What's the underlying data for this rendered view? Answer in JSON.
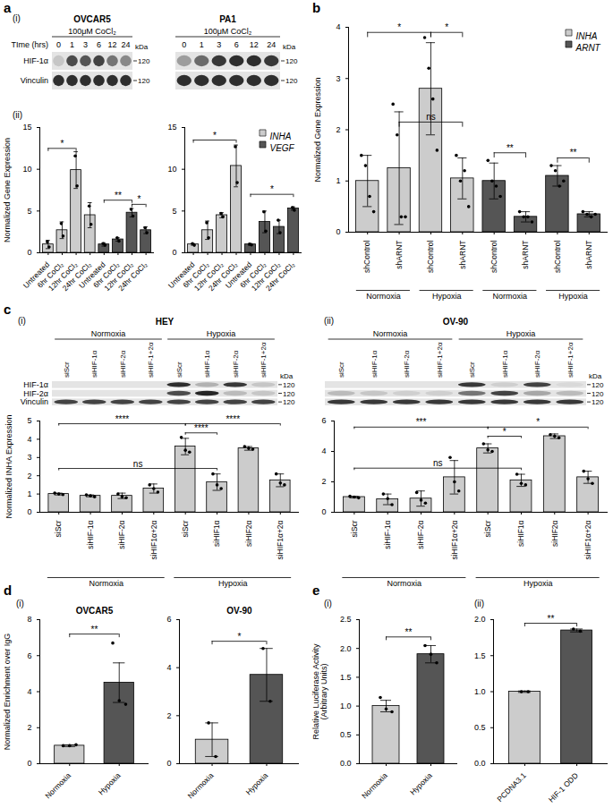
{
  "panel_labels": [
    "a",
    "(i)",
    "(ii)",
    "b",
    "c",
    "(i)",
    "(ii)",
    "d",
    "(i)",
    "e",
    "(i)",
    "(ii)"
  ],
  "blots": [
    {
      "title": "OVCAR5",
      "treatment": "100μM CoCl₂",
      "lane_header": "TIme (hrs)",
      "lanes": [
        "0",
        "1",
        "3",
        "6",
        "12",
        "24"
      ],
      "unit": "kDa",
      "rows": [
        {
          "name": "HIF-1α",
          "marker": 120,
          "bands": [
            0.15,
            0.75,
            0.7,
            0.8,
            0.55,
            0.45
          ]
        },
        {
          "name": "Vinculin",
          "marker": 120,
          "bands": [
            0.9,
            0.9,
            0.9,
            0.9,
            0.9,
            0.9
          ]
        }
      ]
    },
    {
      "title": "PA1",
      "treatment": "100μM CoCl₂",
      "lanes": [
        "0",
        "1",
        "3",
        "6",
        "12",
        "24"
      ],
      "unit": "kDa",
      "rows": [
        {
          "marker": 120,
          "bands": [
            0.35,
            0.6,
            0.85,
            0.9,
            0.9,
            0.85
          ]
        },
        {
          "marker": 120,
          "bands": [
            0.9,
            0.9,
            0.9,
            0.9,
            0.9,
            0.9
          ]
        }
      ]
    },
    {
      "title": "HEY",
      "groups": [
        {
          "label": "Normoxia",
          "from": 0,
          "to": 3
        },
        {
          "label": "Hypoxia",
          "from": 4,
          "to": 7
        }
      ],
      "lanes": [
        "siScr",
        "siHIF-1α",
        "siHIF-2α",
        "siHIF-1+2α",
        "siScr",
        "siHIF-1α",
        "siHIF-2α",
        "siHIF-1+2α"
      ],
      "unit": "kDa",
      "rows": [
        {
          "name": "HIF-1α",
          "marker": 120,
          "bands": [
            0,
            0,
            0,
            0,
            0.9,
            0.25,
            0.85,
            0.15
          ]
        },
        {
          "name": "HIF-2α",
          "marker": 120,
          "bands": [
            0,
            0,
            0,
            0,
            0.75,
            0.95,
            0.2,
            0.15
          ]
        },
        {
          "name": "Vinculin",
          "marker": 120,
          "bands": [
            0.8,
            0.8,
            0.8,
            0.8,
            0.8,
            0.8,
            0.8,
            0.8
          ]
        }
      ]
    },
    {
      "title": "OV-90",
      "groups": [
        {
          "label": "Normoxia",
          "from": 0,
          "to": 3
        },
        {
          "label": "Hypoxia",
          "from": 4,
          "to": 7
        }
      ],
      "lanes": [
        "siScr",
        "siHIF-1α",
        "siHIF-2α",
        "siHIF-1+2α",
        "siScr",
        "siHIF-1α",
        "siHIF-2α",
        "siHIF-1+2α"
      ],
      "unit": "kDa",
      "rows": [
        {
          "marker": 120,
          "bands": [
            0,
            0,
            0,
            0,
            0.85,
            0.1,
            0.8,
            0.05
          ]
        },
        {
          "marker": 120,
          "bands": [
            0.2,
            0.15,
            0.1,
            0.1,
            0.55,
            0.8,
            0.3,
            0.2
          ]
        },
        {
          "marker": 120,
          "bands": [
            0.85,
            0.85,
            0.85,
            0.85,
            0.85,
            0.85,
            0.85,
            0.85
          ]
        }
      ]
    }
  ],
  "chart_data": [
    {
      "type": "bar",
      "ylabel": "Normalized Gene Expression",
      "categories": [
        "Untreated",
        "6hr CoCl₂",
        "12hr CoCl₂",
        "24hr CoCl₂",
        "Untreated",
        "6hr CoCl₂",
        "12hr CoCl₂",
        "24hr CoCl₂"
      ],
      "values": [
        1.0,
        2.7,
        9.9,
        4.5,
        1.0,
        1.6,
        4.8,
        2.7
      ],
      "errors": [
        0.5,
        1.0,
        2.2,
        1.5,
        0.2,
        0.2,
        0.5,
        0.4
      ],
      "points": [
        [
          1.3,
          0.7
        ],
        [
          3.5,
          2.0
        ],
        [
          11.6,
          8.0
        ],
        [
          5.6,
          3.4
        ],
        [
          1.1,
          0.9
        ],
        [
          1.8,
          1.4
        ],
        [
          5.2,
          4.4
        ],
        [
          3.0,
          2.4
        ]
      ],
      "colors": [
        "#cccccc",
        "#cccccc",
        "#cccccc",
        "#cccccc",
        "#555555",
        "#555555",
        "#555555",
        "#555555"
      ],
      "ylim": [
        0,
        15
      ],
      "yticks": [
        0,
        5,
        10,
        15
      ],
      "annotations": [
        {
          "text": "*",
          "from": 0,
          "to": 2,
          "y": 12.5
        },
        {
          "text": "**",
          "from": 4,
          "to": 6,
          "y": 6.3
        },
        {
          "text": "*",
          "from": 6,
          "to": 7,
          "y": 5.8
        }
      ]
    },
    {
      "type": "bar",
      "categories": [
        "Untreated",
        "6hr CoCl₂",
        "12hr CoCl₂",
        "24hr CoCl₂",
        "Untreated",
        "6hr CoCl₂",
        "12hr CoCl₂",
        "24hr CoCl₂"
      ],
      "series": [
        {
          "name": "INHA",
          "color": "#cccccc",
          "values": [
            1.0,
            2.7,
            4.5,
            10.4,
            null,
            null,
            null,
            null
          ],
          "errors": [
            0.1,
            1.1,
            0.3,
            2.5,
            null,
            null,
            null,
            null
          ],
          "points": [
            [
              1.1,
              0.9
            ],
            [
              3.6,
              1.8
            ],
            [
              4.7,
              4.3
            ],
            [
              12.7,
              8.4
            ],
            null,
            null,
            null,
            null
          ]
        },
        {
          "name": "VEGF",
          "color": "#555555",
          "values": [
            null,
            null,
            null,
            null,
            1.0,
            3.7,
            3.1,
            5.3
          ],
          "errors": [
            null,
            null,
            null,
            null,
            0.1,
            1.3,
            0.8,
            0.2
          ],
          "points": [
            null,
            null,
            null,
            null,
            [
              1.05,
              0.95
            ],
            [
              4.9,
              2.6
            ],
            [
              3.9,
              2.4
            ],
            [
              5.4,
              5.1
            ]
          ]
        }
      ],
      "legend": "top-right",
      "ylim": [
        0,
        15
      ],
      "yticks": [
        0,
        5,
        10,
        15
      ],
      "annotations": [
        {
          "text": "*",
          "from": 0,
          "to": 3,
          "y": 13.5
        },
        {
          "text": "*",
          "from": 4,
          "to": 7,
          "y": 7.0
        }
      ]
    },
    {
      "type": "bar",
      "ylabel": "Normalized Gene Expression",
      "categories": [
        "shControl",
        "shARNT",
        "shControl",
        "shARNT",
        "shControl",
        "shARNT",
        "shControl",
        "shARNT"
      ],
      "groups": [
        {
          "label": "Normoxia",
          "from": 0,
          "to": 1
        },
        {
          "label": "Hypoxia",
          "from": 2,
          "to": 3
        },
        {
          "label": "Normoxia",
          "from": 4,
          "to": 5
        },
        {
          "label": "Hypoxia",
          "from": 6,
          "to": 7
        }
      ],
      "series": [
        {
          "name": "INHA",
          "color": "#cccccc",
          "values": [
            1.0,
            1.25,
            2.8,
            1.05,
            null,
            null,
            null,
            null
          ],
          "errors": [
            0.5,
            1.1,
            0.9,
            0.4,
            null,
            null,
            null,
            null
          ],
          "points": [
            [
              1.5,
              1.3,
              0.7,
              0.4
            ],
            [
              2.5,
              1.9,
              0.3,
              0.3
            ],
            [
              3.8,
              3.2,
              2.6,
              1.6
            ],
            [
              1.5,
              1.0,
              1.2,
              0.5
            ],
            null,
            null,
            null,
            null
          ]
        },
        {
          "name": "ARNT",
          "color": "#555555",
          "values": [
            null,
            null,
            null,
            null,
            1.0,
            0.3,
            1.1,
            0.35
          ],
          "errors": [
            null,
            null,
            null,
            null,
            0.35,
            0.1,
            0.2,
            0.05
          ],
          "points": [
            null,
            null,
            null,
            null,
            [
              1.4,
              1.0,
              0.9,
              0.7
            ],
            [
              0.4,
              0.3,
              0.3,
              0.2
            ],
            [
              1.3,
              1.2,
              0.9,
              1.0
            ],
            [
              0.4,
              0.35,
              0.3,
              0.35
            ]
          ]
        }
      ],
      "legend": "top-right",
      "ylim": [
        0,
        4
      ],
      "yticks": [
        0,
        1,
        2,
        3,
        4
      ],
      "annotations": [
        {
          "text": "*",
          "from": 0,
          "to": 2,
          "y": 3.9
        },
        {
          "text": "*",
          "from": 2,
          "to": 3,
          "y": 3.9
        },
        {
          "text": "ns",
          "from": 1,
          "to": 3,
          "y": 2.15
        },
        {
          "text": "**",
          "from": 4,
          "to": 5,
          "y": 1.55
        },
        {
          "text": "**",
          "from": 6,
          "to": 7,
          "y": 1.45
        }
      ]
    },
    {
      "type": "bar",
      "ylabel": "Normalized INHA Expression",
      "categories": [
        "siScr",
        "siHIF-1α",
        "siHIF-2α",
        "siHIF1α+2α",
        "siScr",
        "siHIF1α",
        "siHIF2α",
        "siHIF1α+2α"
      ],
      "groups": [
        {
          "label": "Normoxia",
          "from": 0,
          "to": 3
        },
        {
          "label": "Hypoxia",
          "from": 4,
          "to": 7
        }
      ],
      "values": [
        1.0,
        0.9,
        0.9,
        1.3,
        3.6,
        1.65,
        3.5,
        1.75
      ],
      "errors": [
        0.05,
        0.05,
        0.15,
        0.25,
        0.45,
        0.45,
        0.1,
        0.35
      ],
      "points": [
        [
          1.05,
          1.0,
          0.97
        ],
        [
          0.95,
          0.9,
          0.85
        ],
        [
          1.0,
          0.85,
          0.8
        ],
        [
          1.5,
          1.3,
          1.1
        ],
        [
          4.1,
          3.4,
          3.3
        ],
        [
          2.1,
          1.5,
          1.3
        ],
        [
          3.6,
          3.5,
          3.45
        ],
        [
          2.1,
          1.6,
          1.5
        ]
      ],
      "color": "#cccccc",
      "ylim": [
        0,
        5
      ],
      "yticks": [
        0,
        1,
        2,
        3,
        4,
        5
      ],
      "annotations": [
        {
          "text": "****",
          "from": 0,
          "to": 4,
          "y": 4.85
        },
        {
          "text": "****",
          "from": 4,
          "to": 7,
          "y": 4.85
        },
        {
          "text": "****",
          "from": 4,
          "to": 5,
          "y": 4.35
        },
        {
          "text": "ns",
          "from": 0,
          "to": 5,
          "y": 2.4
        }
      ]
    },
    {
      "type": "bar",
      "categories": [
        "siScr",
        "siHIF-1α",
        "siHIF-2α",
        "siHIF1α+2α",
        "siScr",
        "siHIF1α",
        "siHIF2α",
        "siHIF1α+2α"
      ],
      "groups": [
        {
          "label": "Normoxia",
          "from": 0,
          "to": 3
        },
        {
          "label": "Hypoxia",
          "from": 4,
          "to": 7
        }
      ],
      "values": [
        1.0,
        0.85,
        0.9,
        2.3,
        4.2,
        2.1,
        5.0,
        2.3
      ],
      "errors": [
        0.05,
        0.35,
        0.5,
        1.1,
        0.3,
        0.4,
        0.15,
        0.4
      ],
      "points": [
        [
          1.05,
          1.0,
          0.95
        ],
        [
          1.2,
          0.9,
          0.5
        ],
        [
          1.3,
          0.8,
          0.6
        ],
        [
          3.6,
          2.0,
          1.4
        ],
        [
          4.5,
          4.1,
          4.0
        ],
        [
          2.5,
          1.9,
          1.8
        ],
        [
          5.1,
          5.0,
          4.9
        ],
        [
          2.7,
          2.2,
          1.9
        ]
      ],
      "color": "#cccccc",
      "ylim": [
        0,
        6
      ],
      "yticks": [
        0,
        2,
        4,
        6
      ],
      "annotations": [
        {
          "text": "***",
          "from": 0,
          "to": 4,
          "y": 5.6
        },
        {
          "text": "*",
          "from": 4,
          "to": 5,
          "y": 5.0
        },
        {
          "text": "*",
          "from": 4,
          "to": 7,
          "y": 5.6
        },
        {
          "text": "ns",
          "from": 0,
          "to": 5,
          "y": 2.9
        }
      ]
    },
    {
      "type": "bar",
      "title": "OVCAR5",
      "ylabel": "Normalized Enrichment over IgG",
      "categories": [
        "Normoxia",
        "Hypoxia"
      ],
      "values": [
        1.0,
        4.5
      ],
      "errors": [
        0.05,
        1.1
      ],
      "points": [
        [
          1.0,
          1.0,
          1.05
        ],
        [
          6.7,
          3.5,
          3.3
        ]
      ],
      "colors": [
        "#cccccc",
        "#555555"
      ],
      "ylim": [
        0,
        8
      ],
      "yticks": [
        0,
        2,
        4,
        6,
        8
      ],
      "annotations": [
        {
          "text": "**",
          "from": 0,
          "to": 1,
          "y": 7.2
        }
      ]
    },
    {
      "type": "bar",
      "title": "OV-90",
      "categories": [
        "Normoxia",
        "Hypoxia"
      ],
      "values": [
        1.0,
        3.7
      ],
      "errors": [
        0.7,
        1.1
      ],
      "points": [
        [
          1.7,
          0.3
        ],
        [
          4.8,
          2.6
        ]
      ],
      "colors": [
        "#cccccc",
        "#555555"
      ],
      "ylim": [
        0,
        6
      ],
      "yticks": [
        0,
        2,
        4,
        6
      ],
      "annotations": [
        {
          "text": "*",
          "from": 0,
          "to": 1,
          "y": 5.1
        }
      ]
    },
    {
      "type": "bar",
      "ylabel": "Relative Luciferase Activity\n(Arbitrary Units)",
      "categories": [
        "Normoxia",
        "Hypoxia"
      ],
      "values": [
        1.0,
        1.9
      ],
      "errors": [
        0.1,
        0.15
      ],
      "points": [
        [
          1.15,
          0.95,
          0.9
        ],
        [
          2.05,
          1.9,
          1.75
        ]
      ],
      "colors": [
        "#cccccc",
        "#555555"
      ],
      "ylim": [
        0,
        2.5
      ],
      "yticks": [
        {
          "value": 0,
          "label": "0.0"
        },
        {
          "value": 0.5,
          "label": "0.5"
        },
        {
          "value": 1,
          "label": "1.0"
        },
        {
          "value": 1.5,
          "label": "1.5"
        },
        {
          "value": 2,
          "label": "2.0"
        },
        {
          "value": 2.5,
          "label": "2.5"
        }
      ],
      "annotations": [
        {
          "text": "**",
          "from": 0,
          "to": 1,
          "y": 2.2
        }
      ]
    },
    {
      "type": "bar",
      "categories": [
        "PCDNA3.1",
        "HIF-1 ODD"
      ],
      "values": [
        1.0,
        1.85
      ],
      "errors": [
        0.01,
        0.02
      ],
      "points": [
        [
          1.0,
          1.0
        ],
        [
          1.87,
          1.84
        ]
      ],
      "colors": [
        "#cccccc",
        "#555555"
      ],
      "ylim": [
        0,
        2
      ],
      "yticks": [
        {
          "value": 0,
          "label": "0.0"
        },
        {
          "value": 0.5,
          "label": "0.5"
        },
        {
          "value": 1,
          "label": "1.0"
        },
        {
          "value": 1.5,
          "label": "1.5"
        },
        {
          "value": 2,
          "label": "2.0"
        }
      ],
      "annotations": [
        {
          "text": "**",
          "from": 0,
          "to": 1,
          "y": 1.95
        }
      ]
    }
  ]
}
